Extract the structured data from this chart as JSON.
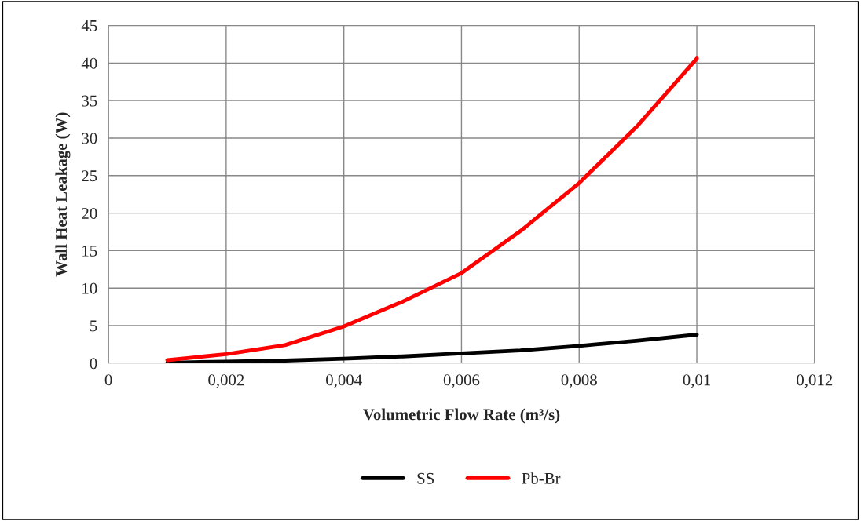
{
  "chart_data": {
    "type": "line",
    "xlabel": "Volumetric Flow Rate (m³/s)",
    "ylabel": "Wall Heat Leakage (W)",
    "x": [
      0.001,
      0.002,
      0.003,
      0.004,
      0.005,
      0.006,
      0.007,
      0.008,
      0.009,
      0.01
    ],
    "series": [
      {
        "name": "SS",
        "color": "#000000",
        "values": [
          0.05,
          0.2,
          0.35,
          0.6,
          0.9,
          1.3,
          1.7,
          2.3,
          3.0,
          3.8
        ]
      },
      {
        "name": "Pb-Br",
        "color": "#ff0000",
        "values": [
          0.4,
          1.2,
          2.4,
          4.9,
          8.2,
          12,
          17.6,
          24,
          31.7,
          40.6
        ]
      }
    ],
    "xlim": [
      0,
      0.012
    ],
    "xticks": [
      0,
      {
        "value": 0.002,
        "label": "0,002"
      },
      {
        "value": 0.004,
        "label": "0,004"
      },
      {
        "value": 0.006,
        "label": "0,006"
      },
      {
        "value": 0.008,
        "label": "0,008"
      },
      {
        "value": 0.01,
        "label": "0,01"
      },
      {
        "value": 0.012,
        "label": "0,012"
      }
    ],
    "ylim": [
      0,
      45
    ],
    "yticks": [
      0,
      5,
      10,
      15,
      20,
      25,
      30,
      35,
      40,
      45
    ],
    "grid": true,
    "legend": "bottom",
    "marker": "none",
    "line_style": "solid"
  }
}
